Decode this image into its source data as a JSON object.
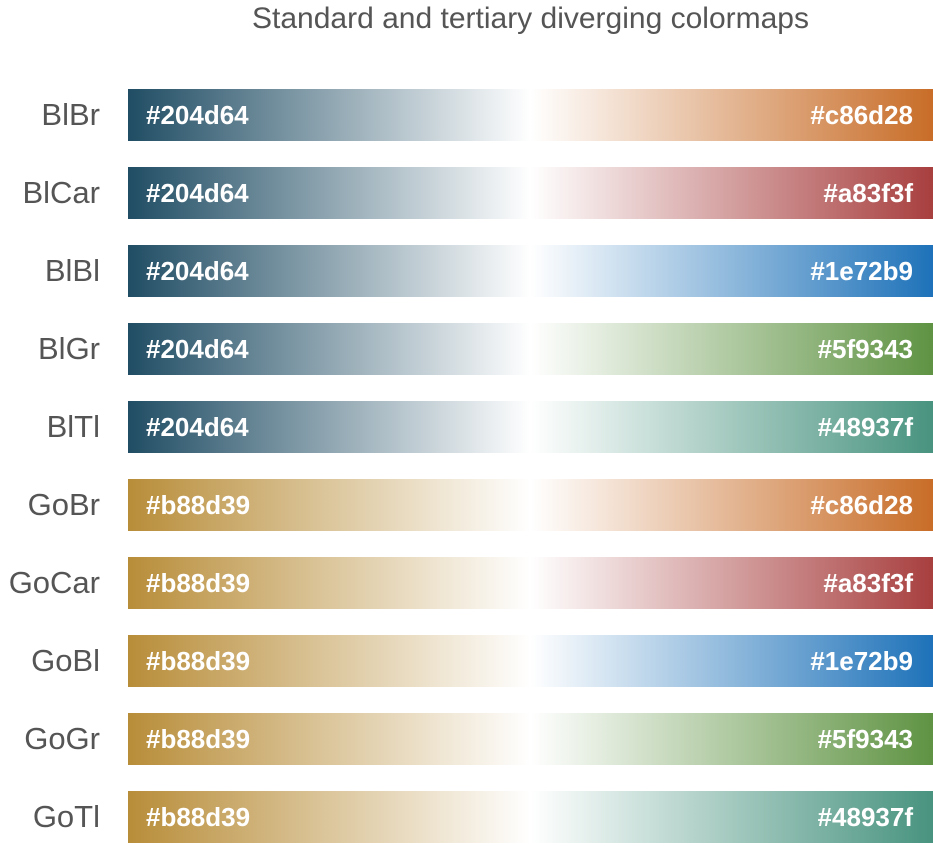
{
  "title": "Standard and tertiary diverging colormaps",
  "colormaps": [
    {
      "name": "BlBr",
      "left": "#204d64",
      "right": "#c86d28"
    },
    {
      "name": "BlCar",
      "left": "#204d64",
      "right": "#a83f3f"
    },
    {
      "name": "BlBl",
      "left": "#204d64",
      "right": "#1e72b9"
    },
    {
      "name": "BlGr",
      "left": "#204d64",
      "right": "#5f9343"
    },
    {
      "name": "BlTl",
      "left": "#204d64",
      "right": "#48937f"
    },
    {
      "name": "GoBr",
      "left": "#b88d39",
      "right": "#c86d28"
    },
    {
      "name": "GoCar",
      "left": "#b88d39",
      "right": "#a83f3f"
    },
    {
      "name": "GoBl",
      "left": "#b88d39",
      "right": "#1e72b9"
    },
    {
      "name": "GoGr",
      "left": "#b88d39",
      "right": "#5f9343"
    },
    {
      "name": "GoTl",
      "left": "#b88d39",
      "right": "#48937f"
    }
  ],
  "midpoint_color": "#ffffff"
}
